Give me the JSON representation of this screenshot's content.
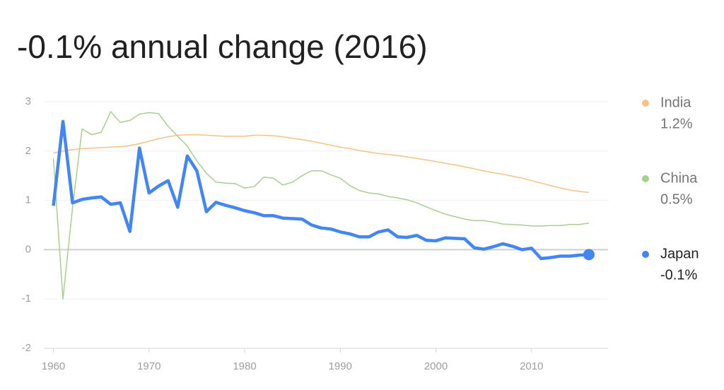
{
  "chart_data": {
    "type": "line",
    "title": "-0.1% annual change (2016)",
    "x": [
      1960,
      1961,
      1962,
      1963,
      1964,
      1965,
      1966,
      1967,
      1968,
      1969,
      1970,
      1971,
      1972,
      1973,
      1974,
      1975,
      1976,
      1977,
      1978,
      1979,
      1980,
      1981,
      1982,
      1983,
      1984,
      1985,
      1986,
      1987,
      1988,
      1989,
      1990,
      1991,
      1992,
      1993,
      1994,
      1995,
      1996,
      1997,
      1998,
      1999,
      2000,
      2001,
      2002,
      2003,
      2004,
      2005,
      2006,
      2007,
      2008,
      2009,
      2010,
      2011,
      2012,
      2013,
      2014,
      2015,
      2016
    ],
    "series": [
      {
        "name": "India",
        "legend_value": "1.2%",
        "color": "#f6c185",
        "line_width": 1.5,
        "values": [
          1.96,
          2.0,
          2.03,
          2.05,
          2.06,
          2.07,
          2.08,
          2.09,
          2.11,
          2.15,
          2.2,
          2.25,
          2.29,
          2.32,
          2.33,
          2.33,
          2.32,
          2.31,
          2.3,
          2.3,
          2.3,
          2.32,
          2.32,
          2.31,
          2.29,
          2.26,
          2.23,
          2.2,
          2.16,
          2.12,
          2.08,
          2.05,
          2.01,
          1.98,
          1.95,
          1.93,
          1.91,
          1.88,
          1.85,
          1.82,
          1.79,
          1.75,
          1.72,
          1.68,
          1.64,
          1.6,
          1.56,
          1.53,
          1.49,
          1.45,
          1.4,
          1.35,
          1.3,
          1.25,
          1.21,
          1.18,
          1.16
        ]
      },
      {
        "name": "China",
        "legend_value": "0.5%",
        "color": "#a8d08d",
        "line_width": 1.5,
        "values": [
          1.85,
          -1.0,
          0.85,
          2.45,
          2.33,
          2.38,
          2.8,
          2.58,
          2.62,
          2.75,
          2.78,
          2.76,
          2.5,
          2.3,
          2.1,
          1.8,
          1.55,
          1.37,
          1.35,
          1.34,
          1.25,
          1.28,
          1.47,
          1.45,
          1.31,
          1.37,
          1.5,
          1.6,
          1.6,
          1.52,
          1.45,
          1.3,
          1.2,
          1.15,
          1.13,
          1.08,
          1.05,
          1.01,
          0.95,
          0.87,
          0.79,
          0.72,
          0.67,
          0.62,
          0.59,
          0.59,
          0.56,
          0.52,
          0.51,
          0.5,
          0.48,
          0.48,
          0.49,
          0.49,
          0.51,
          0.51,
          0.54
        ]
      },
      {
        "name": "Japan",
        "legend_value": "-0.1%",
        "color": "#4285f4",
        "line_width": 4.5,
        "values": [
          0.89,
          2.6,
          0.95,
          1.02,
          1.05,
          1.07,
          0.92,
          0.95,
          0.37,
          2.06,
          1.15,
          1.29,
          1.4,
          0.86,
          1.9,
          1.6,
          0.77,
          0.96,
          0.9,
          0.85,
          0.79,
          0.75,
          0.69,
          0.69,
          0.64,
          0.63,
          0.62,
          0.5,
          0.44,
          0.42,
          0.36,
          0.32,
          0.26,
          0.26,
          0.36,
          0.4,
          0.26,
          0.25,
          0.29,
          0.19,
          0.18,
          0.24,
          0.23,
          0.22,
          0.04,
          0.01,
          0.06,
          0.12,
          0.07,
          0.0,
          0.03,
          -0.18,
          -0.16,
          -0.13,
          -0.13,
          -0.11,
          -0.1
        ]
      }
    ],
    "xlim": [
      1959,
      2018
    ],
    "xticks": [
      1960,
      1970,
      1980,
      1990,
      2000,
      2010
    ],
    "ylim": [
      -2,
      3
    ],
    "yticks": [
      -2,
      -1,
      0,
      1,
      2,
      3
    ],
    "grid": true,
    "legend": "right"
  }
}
